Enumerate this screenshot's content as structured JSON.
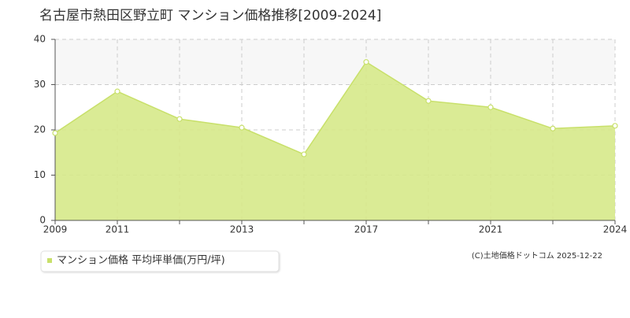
{
  "chart_data": {
    "type": "area",
    "title": "名古屋市熱田区野立町 マンション価格推移[2009-2024]",
    "categories": [
      "2009",
      "2011",
      null,
      "2013",
      null,
      "2017",
      null,
      "2021",
      null,
      "2024"
    ],
    "series": [
      {
        "name": "マンション価格 平均坪単価(万円/坪)",
        "color": "#c8e06a",
        "values": [
          19.3,
          28.5,
          22.4,
          20.5,
          14.6,
          35.0,
          26.4,
          25.0,
          20.3,
          20.9
        ]
      }
    ],
    "ylim": [
      0,
      40
    ],
    "yticks": [
      0,
      10,
      20,
      30,
      40
    ],
    "grid": true,
    "source": "(C)土地価格ドットコム 2025-12-22"
  }
}
